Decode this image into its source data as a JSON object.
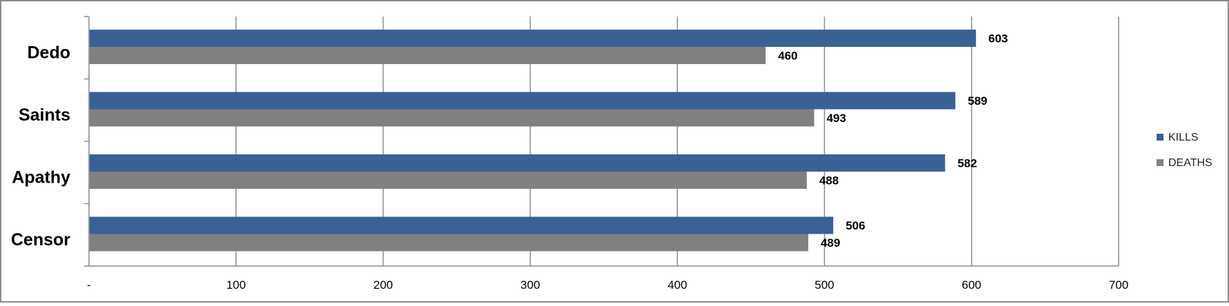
{
  "chart_data": {
    "type": "bar",
    "orientation": "horizontal",
    "categories": [
      "Dedo",
      "Saints",
      "Apathy",
      "Censor"
    ],
    "series": [
      {
        "name": "KILLS",
        "values": [
          603,
          589,
          582,
          506
        ],
        "color": "#3A6195"
      },
      {
        "name": "DEATHS",
        "values": [
          460,
          493,
          488,
          489
        ],
        "color": "#808080"
      }
    ],
    "xticks": [
      "-",
      "100",
      "200",
      "300",
      "400",
      "500",
      "600",
      "700"
    ],
    "xlim": [
      0,
      700
    ],
    "grid": true,
    "legend_position": "right",
    "data_labels": true,
    "title": "",
    "xlabel": "",
    "ylabel": ""
  }
}
